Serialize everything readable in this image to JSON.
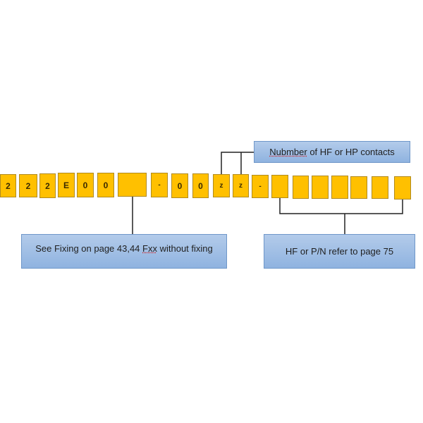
{
  "cells": [
    "2",
    "2",
    "2",
    "E",
    "0",
    "0",
    "",
    "-",
    "0",
    "0",
    "z",
    "z",
    "-",
    "",
    "",
    "",
    "",
    "",
    "",
    ""
  ],
  "notes": {
    "contacts": {
      "pre": "Nubmber",
      "post": " of HF or HP contacts"
    },
    "fixing": {
      "pre": "See Fixing on page 43,44 ",
      "spell": "Fxx",
      "post": " without fixing"
    },
    "pn": "HF or P/N refer to page 75"
  },
  "colors": {
    "cell": "#FFC000",
    "note": "#8fb3e0",
    "line": "#000000"
  }
}
